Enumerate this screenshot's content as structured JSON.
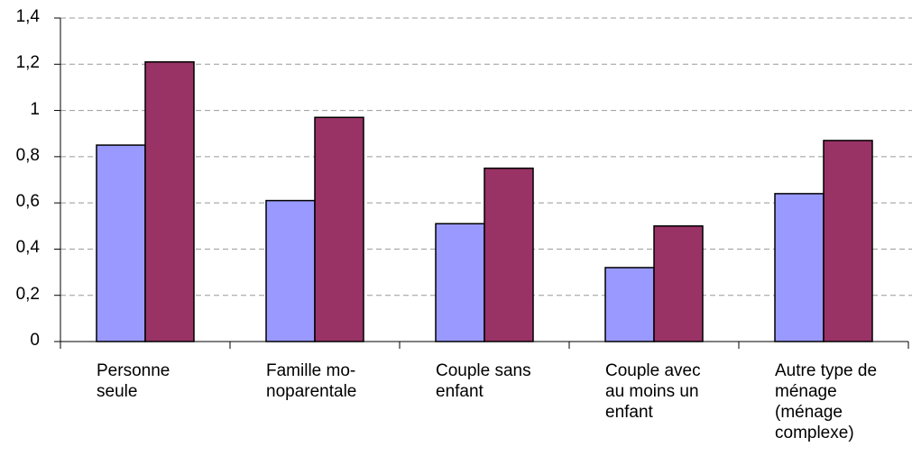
{
  "chart_data": {
    "type": "bar",
    "categories": [
      "Personne\nseule",
      "Famille mo-\nnoparentale",
      "Couple sans\nenfant",
      "Couple avec\nau moins un\nenfant",
      "Autre type de\nménage\n(ménage\ncomplexe)"
    ],
    "series": [
      {
        "color": "#9999ff",
        "values": [
          0.85,
          0.61,
          0.51,
          0.32,
          0.64
        ]
      },
      {
        "color": "#993366",
        "values": [
          1.21,
          0.97,
          0.75,
          0.5,
          0.87
        ]
      }
    ],
    "ylim": [
      0,
      1.4
    ],
    "yticks": [
      0,
      {
        "value": 0.2,
        "label": "0,2"
      },
      {
        "value": 0.4,
        "label": "0,4"
      },
      {
        "value": 0.6,
        "label": "0,6"
      },
      {
        "value": 0.8,
        "label": "0,8"
      },
      1,
      {
        "value": 1.2,
        "label": "1,2"
      },
      {
        "value": 1.4,
        "label": "1,4"
      }
    ],
    "grid": true
  }
}
